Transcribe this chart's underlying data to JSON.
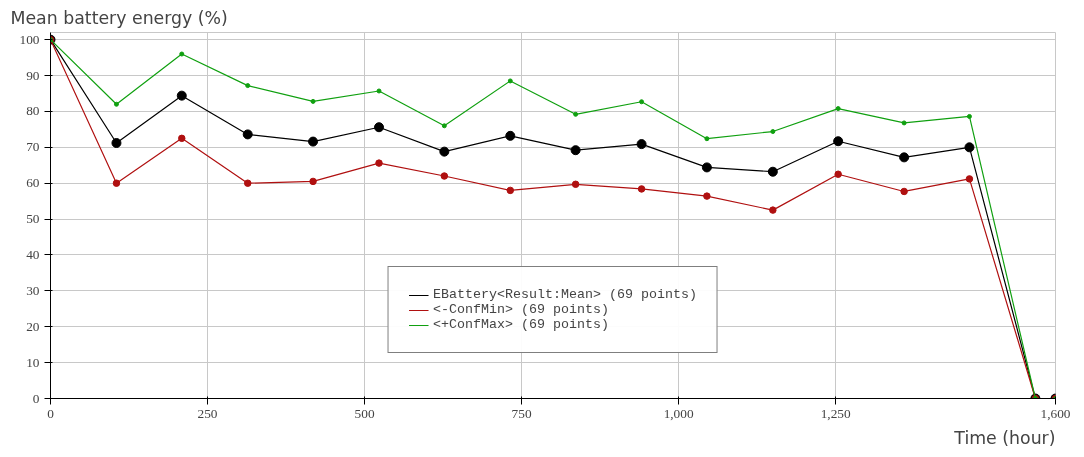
{
  "chart_data": {
    "type": "line",
    "ylabel": "Mean battery energy (%)",
    "xlabel": "Time (hour)",
    "x": [
      0,
      105,
      209,
      314,
      418,
      523,
      627,
      732,
      836,
      941,
      1045,
      1150,
      1254,
      1359,
      1463,
      1568,
      1600
    ],
    "series": [
      {
        "name": "EBattery<Result:Mean> (69 points)",
        "color": "#000000",
        "values": [
          100,
          71.2,
          84.4,
          73.6,
          71.6,
          75.6,
          68.8,
          73.2,
          69.2,
          70.9,
          64.4,
          63.2,
          71.7,
          67.2,
          70.0,
          0,
          0
        ]
      },
      {
        "name": "<-ConfMin> (69 points)",
        "color": "#b01010",
        "values": [
          100,
          60,
          72.5,
          60,
          60.5,
          65.6,
          62,
          58,
          59.7,
          58.4,
          56.4,
          52.5,
          62.5,
          57.7,
          61.2,
          0,
          0
        ]
      },
      {
        "name": "<+ConfMax> (69 points)",
        "color": "#10a010",
        "values": [
          100,
          82,
          96,
          87.2,
          82.8,
          85.7,
          76,
          88.5,
          79.2,
          82.7,
          72.4,
          74.4,
          80.8,
          76.8,
          78.6,
          0,
          0
        ]
      }
    ],
    "xlim": [
      0,
      1600
    ],
    "xticks": [
      0,
      250,
      500,
      750,
      {
        "value": 1000,
        "label": "1,000"
      },
      {
        "value": 1250,
        "label": "1,250"
      },
      {
        "value": 1600,
        "label": "1,600"
      }
    ],
    "ylim": [
      0,
      102
    ],
    "yticks": [
      0,
      10,
      20,
      30,
      40,
      50,
      60,
      70,
      80,
      90,
      100
    ],
    "grid": true,
    "legend": "bottom",
    "marker": "circle",
    "line_style": "solid"
  }
}
